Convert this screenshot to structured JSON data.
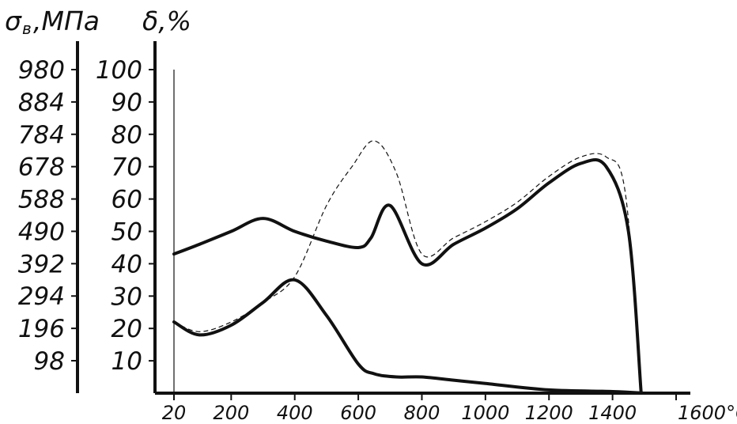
{
  "chart_data": {
    "type": "line",
    "x_unit": "°C",
    "x_ticks": [
      20,
      200,
      400,
      600,
      800,
      1000,
      1200,
      1400,
      1600
    ],
    "xlim": [
      20,
      1600
    ],
    "left_axis": {
      "title_main": "σ",
      "title_sub": "в",
      "title_unit": ",МПа",
      "ticks": [
        980,
        884,
        784,
        678,
        588,
        490,
        392,
        294,
        196,
        98
      ]
    },
    "right_axis": {
      "title": "δ,%",
      "ticks": [
        100,
        90,
        80,
        70,
        60,
        50,
        40,
        30,
        20,
        10
      ],
      "ylim": [
        0,
        100
      ]
    },
    "series": [
      {
        "axis": "right",
        "values_x": [
          20,
          100,
          200,
          300,
          400,
          500,
          600,
          640,
          700,
          800,
          900,
          1000,
          1100,
          1200,
          1300,
          1380,
          1450,
          1490
        ],
        "values_y": [
          43,
          46,
          50,
          54,
          50,
          47,
          45,
          48,
          58,
          40,
          46,
          51,
          57,
          65,
          71,
          70,
          50,
          0
        ]
      },
      {
        "axis": "right",
        "values_x": [
          20,
          100,
          200,
          300,
          400,
          500,
          600,
          650,
          720,
          800,
          900,
          1000,
          1200,
          1400,
          1500
        ],
        "values_y": [
          22,
          18,
          21,
          28,
          35,
          24,
          9,
          6,
          5,
          5,
          4,
          3,
          1,
          0.5,
          0
        ]
      },
      {
        "axis": "right",
        "style": "dashed",
        "values_x": [
          20,
          100,
          200,
          300,
          400,
          500,
          580,
          650,
          720,
          800,
          900,
          1000,
          1100,
          1200,
          1300,
          1380,
          1440,
          1490
        ],
        "values_y": [
          22,
          19,
          22,
          28,
          36,
          58,
          70,
          78,
          68,
          43,
          48,
          53,
          59,
          67,
          73,
          73,
          62,
          0
        ]
      }
    ]
  }
}
